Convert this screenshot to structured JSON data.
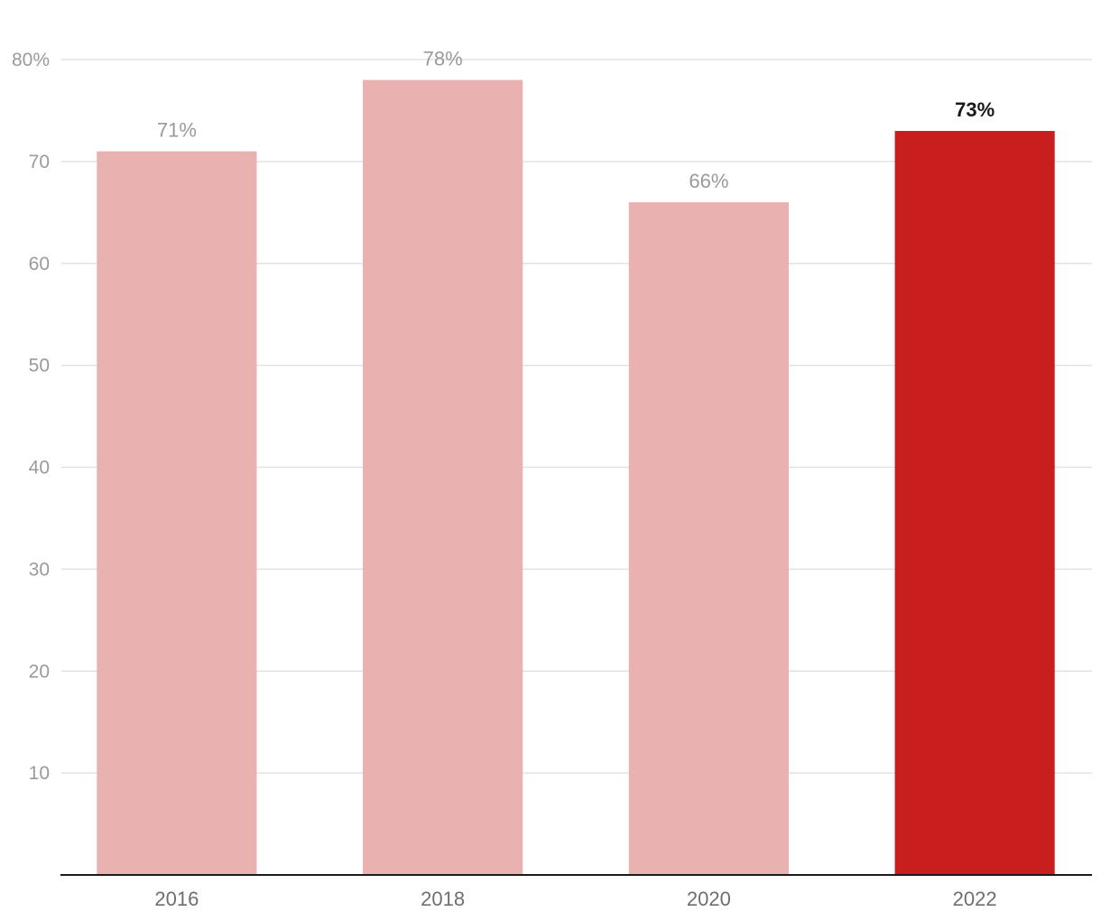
{
  "chart_data": {
    "type": "bar",
    "title": "",
    "xlabel": "",
    "ylabel": "",
    "categories": [
      "2016",
      "2018",
      "2020",
      "2022"
    ],
    "values": [
      71,
      78,
      66,
      73
    ],
    "value_labels": [
      "71%",
      "78%",
      "66%",
      "73%"
    ],
    "highlight_index": 3,
    "ylim": [
      0,
      80
    ],
    "y_ticks": [
      10,
      20,
      30,
      40,
      50,
      60,
      70,
      80
    ],
    "y_tick_labels": [
      "10",
      "20",
      "30",
      "40",
      "50",
      "60",
      "70",
      "80%"
    ],
    "grid": true,
    "legend": "none",
    "colors": {
      "bar": "#eab1b1",
      "bar_highlight": "#c81e1e",
      "grid": "#e2e2e2",
      "axis": "#1a1a1a"
    }
  }
}
